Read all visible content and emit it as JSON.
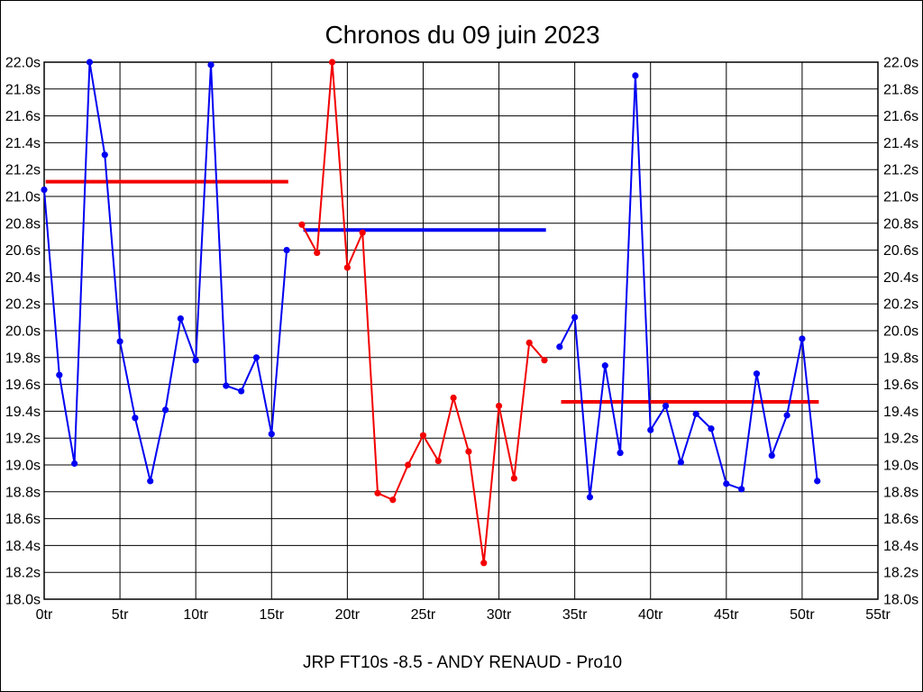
{
  "page": {
    "title": "Chronos du 09 juin 2023",
    "footer": "JRP FT10s -8.5 - ANDY RENAUD - Pro10"
  },
  "chart_data": {
    "type": "line",
    "title": "Chronos du 09 juin 2023",
    "footer": "JRP FT10s -8.5 - ANDY RENAUD - Pro10",
    "grid": true,
    "legend": "none",
    "x_axis": {
      "unit": "tr",
      "min": 0,
      "max": 55,
      "tick_step": 5,
      "tick_labels": [
        "0tr",
        "5tr",
        "10tr",
        "15tr",
        "20tr",
        "25tr",
        "30tr",
        "35tr",
        "40tr",
        "45tr",
        "50tr",
        "55tr"
      ]
    },
    "y_axis": {
      "unit": "s",
      "min": 18.0,
      "max": 22.0,
      "tick_step": 0.2,
      "sides": [
        "left",
        "right"
      ],
      "tick_labels": [
        "22.0s",
        "21.8s",
        "21.6s",
        "21.4s",
        "21.2s",
        "21.0s",
        "20.8s",
        "20.6s",
        "20.4s",
        "20.2s",
        "20.0s",
        "19.8s",
        "19.6s",
        "19.4s",
        "19.2s",
        "19.0s",
        "18.8s",
        "18.6s",
        "18.4s",
        "18.2s",
        "18.0s"
      ]
    },
    "colors": {
      "blue_series": "#0000F2",
      "red_series": "#F20000",
      "grid": "#000000"
    },
    "series": [
      {
        "name": "serie-1-bleue",
        "color": "#0000F2",
        "x_start": 0,
        "values": [
          21.05,
          19.67,
          19.01,
          22.0,
          21.31,
          19.92,
          19.35,
          18.88,
          19.41,
          20.09,
          19.78,
          21.98,
          19.59,
          19.55,
          19.8,
          19.23,
          20.6
        ]
      },
      {
        "name": "serie-2-rouge",
        "color": "#F20000",
        "x_start": 17,
        "values": [
          20.79,
          20.58,
          22.0,
          20.47,
          20.73,
          18.79,
          18.74,
          19.0,
          19.22,
          19.03,
          19.5,
          19.1,
          18.27,
          19.44,
          18.9,
          19.91,
          19.78
        ]
      },
      {
        "name": "serie-3-bleue",
        "color": "#0000F2",
        "x_start": 34,
        "values": [
          19.88,
          20.1,
          18.76,
          19.74,
          19.09,
          21.9,
          19.26,
          19.44,
          19.02,
          19.38,
          19.27,
          18.86,
          18.82,
          19.68,
          19.07,
          19.37,
          19.94,
          18.88
        ]
      }
    ],
    "reference_lines": [
      {
        "name": "ligne-moyenne-1",
        "color": "#F20000",
        "value": 21.11,
        "x_start": 0.1,
        "x_end": 16.1
      },
      {
        "name": "ligne-moyenne-2",
        "color": "#0000F2",
        "value": 20.75,
        "x_start": 17.1,
        "x_end": 33.1
      },
      {
        "name": "ligne-moyenne-3",
        "color": "#F20000",
        "value": 19.47,
        "x_start": 34.1,
        "x_end": 51.1
      }
    ]
  }
}
